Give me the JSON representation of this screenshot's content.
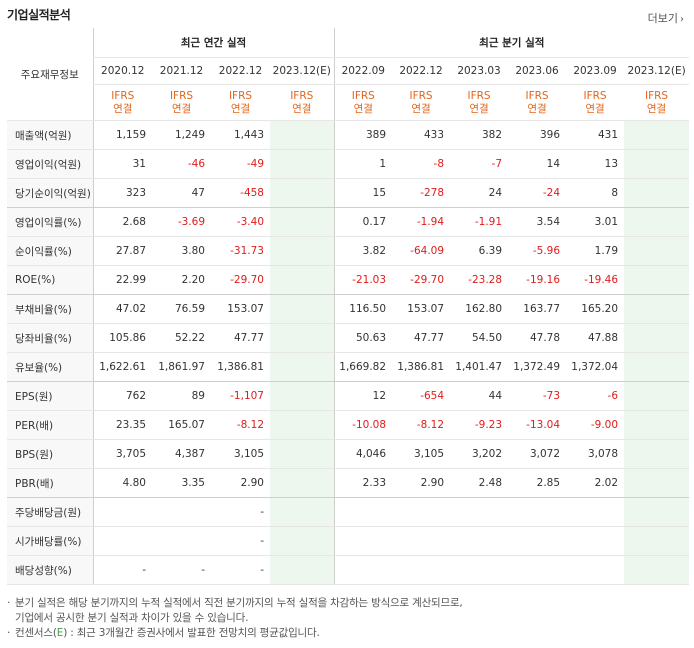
{
  "section_title": "기업실적분석",
  "more_link": "더보기",
  "header": {
    "label_col": "주요재무정보",
    "annual_group": "최근 연간 실적",
    "quarter_group": "최근 분기 실적",
    "annual_periods": [
      "2020.12",
      "2021.12",
      "2022.12",
      "2023.12(E)"
    ],
    "quarter_periods": [
      "2022.09",
      "2022.12",
      "2023.03",
      "2023.06",
      "2023.09",
      "2023.12(E)"
    ],
    "ifrs_top": "IFRS",
    "ifrs_bottom": "연결"
  },
  "rows": [
    {
      "label": "매출액(억원)",
      "annual": [
        "1,159",
        "1,249",
        "1,443",
        ""
      ],
      "quarter": [
        "389",
        "433",
        "382",
        "396",
        "431",
        ""
      ]
    },
    {
      "label": "영업이익(억원)",
      "annual": [
        "31",
        "-46",
        "-49",
        ""
      ],
      "quarter": [
        "1",
        "-8",
        "-7",
        "14",
        "13",
        ""
      ]
    },
    {
      "label": "당기순이익(억원)",
      "annual": [
        "323",
        "47",
        "-458",
        ""
      ],
      "quarter": [
        "15",
        "-278",
        "24",
        "-24",
        "8",
        ""
      ]
    },
    {
      "label": "영업이익률(%)",
      "annual": [
        "2.68",
        "-3.69",
        "-3.40",
        ""
      ],
      "quarter": [
        "0.17",
        "-1.94",
        "-1.91",
        "3.54",
        "3.01",
        ""
      ]
    },
    {
      "label": "순이익률(%)",
      "annual": [
        "27.87",
        "3.80",
        "-31.73",
        ""
      ],
      "quarter": [
        "3.82",
        "-64.09",
        "6.39",
        "-5.96",
        "1.79",
        ""
      ]
    },
    {
      "label": "ROE(%)",
      "annual": [
        "22.99",
        "2.20",
        "-29.70",
        ""
      ],
      "quarter": [
        "-21.03",
        "-29.70",
        "-23.28",
        "-19.16",
        "-19.46",
        ""
      ]
    },
    {
      "label": "부채비율(%)",
      "annual": [
        "47.02",
        "76.59",
        "153.07",
        ""
      ],
      "quarter": [
        "116.50",
        "153.07",
        "162.80",
        "163.77",
        "165.20",
        ""
      ]
    },
    {
      "label": "당좌비율(%)",
      "annual": [
        "105.86",
        "52.22",
        "47.77",
        ""
      ],
      "quarter": [
        "50.63",
        "47.77",
        "54.50",
        "47.78",
        "47.88",
        ""
      ]
    },
    {
      "label": "유보율(%)",
      "annual": [
        "1,622.61",
        "1,861.97",
        "1,386.81",
        ""
      ],
      "quarter": [
        "1,669.82",
        "1,386.81",
        "1,401.47",
        "1,372.49",
        "1,372.04",
        ""
      ]
    },
    {
      "label": "EPS(원)",
      "annual": [
        "762",
        "89",
        "-1,107",
        ""
      ],
      "quarter": [
        "12",
        "-654",
        "44",
        "-73",
        "-6",
        ""
      ]
    },
    {
      "label": "PER(배)",
      "annual": [
        "23.35",
        "165.07",
        "-8.12",
        ""
      ],
      "quarter": [
        "-10.08",
        "-8.12",
        "-9.23",
        "-13.04",
        "-9.00",
        ""
      ]
    },
    {
      "label": "BPS(원)",
      "annual": [
        "3,705",
        "4,387",
        "3,105",
        ""
      ],
      "quarter": [
        "4,046",
        "3,105",
        "3,202",
        "3,072",
        "3,078",
        ""
      ]
    },
    {
      "label": "PBR(배)",
      "annual": [
        "4.80",
        "3.35",
        "2.90",
        ""
      ],
      "quarter": [
        "2.33",
        "2.90",
        "2.48",
        "2.85",
        "2.02",
        ""
      ]
    },
    {
      "label": "주당배당금(원)",
      "annual": [
        "",
        "",
        "-",
        ""
      ],
      "quarter": [
        "",
        "",
        "",
        "",
        "",
        ""
      ]
    },
    {
      "label": "시가배당률(%)",
      "annual": [
        "",
        "",
        "-",
        ""
      ],
      "quarter": [
        "",
        "",
        "",
        "",
        "",
        ""
      ]
    },
    {
      "label": "배당성향(%)",
      "annual": [
        "-",
        "-",
        "-",
        ""
      ],
      "quarter": [
        "",
        "",
        "",
        "",
        "",
        ""
      ]
    }
  ],
  "group_breaks_after": [
    2,
    5,
    8,
    12
  ],
  "notes": {
    "line1": "분기 실적은 해당 분기까지의 누적 실적에서 직전 분기까지의 누적 실적을 차감하는 방식으로 계산되므로,",
    "line2": "기업에서 공시한 분기 실적과 차이가 있을 수 있습니다.",
    "line3_prefix": "컨센서스(",
    "line3_e": "E",
    "line3_suffix": ") : 최근 3개월간 증권사에서 발표한 전망치의 평균값입니다."
  },
  "colors": {
    "negative": "#e01b1b",
    "ifrs": "#e3641b",
    "estimate_bg": "#eef7ee"
  }
}
